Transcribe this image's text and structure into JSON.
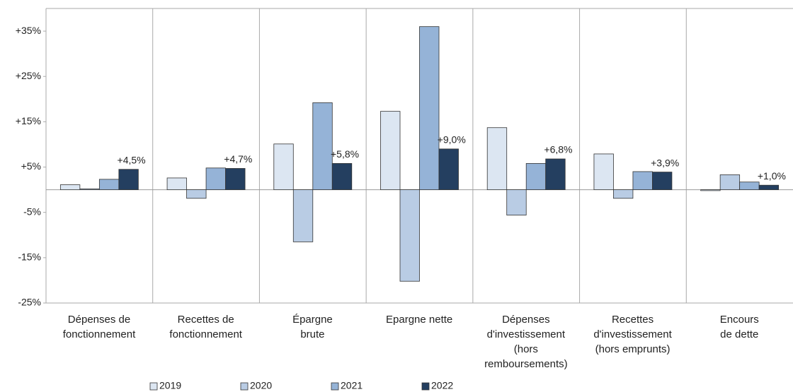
{
  "chart_data": {
    "type": "bar",
    "categories": [
      "Dépenses de\nfonctionnement",
      "Recettes de\nfonctionnement",
      "Épargne\nbrute",
      "Epargne nette",
      "Dépenses\nd'investissement\n(hors\nremboursements)",
      "Recettes\nd'investissement\n(hors emprunts)",
      "Encours\nde dette"
    ],
    "series": [
      {
        "name": "2019",
        "color": "#dce6f2",
        "values": [
          1.1,
          2.6,
          10.1,
          17.3,
          13.7,
          7.9,
          -0.2
        ]
      },
      {
        "name": "2020",
        "color": "#b9cce4",
        "values": [
          0.2,
          -1.9,
          -11.5,
          -20.2,
          -5.6,
          -1.9,
          3.3
        ]
      },
      {
        "name": "2021",
        "color": "#95b3d7",
        "values": [
          2.3,
          4.8,
          19.2,
          36.0,
          5.8,
          4.0,
          1.7
        ]
      },
      {
        "name": "2022",
        "color": "#243f60",
        "values": [
          4.5,
          4.7,
          5.8,
          9.0,
          6.8,
          3.9,
          1.0
        ],
        "value_labels": [
          "+4,5%",
          "+4,7%",
          "+5,8%",
          "+9,0%",
          "+6,8%",
          "+3,9%",
          "+1,0%"
        ]
      }
    ],
    "ylim": [
      -25,
      40
    ],
    "yticks": [
      {
        "value": 35,
        "label": "+35%"
      },
      {
        "value": 25,
        "label": "+25%"
      },
      {
        "value": 15,
        "label": "+15%"
      },
      {
        "value": 5,
        "label": "+5%"
      },
      {
        "value": -5,
        "label": "-5%"
      },
      {
        "value": -15,
        "label": "-15%"
      },
      {
        "value": -25,
        "label": "-25%"
      }
    ],
    "grid": false
  }
}
